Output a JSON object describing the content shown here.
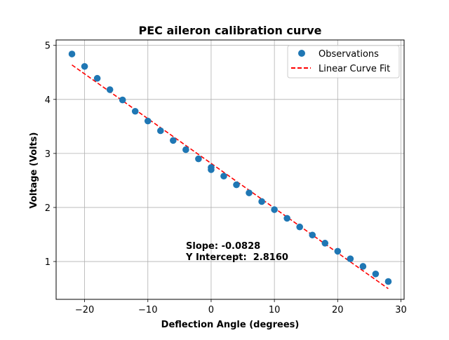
{
  "chart_data": {
    "type": "scatter",
    "title": "PEC aileron calibration curve",
    "xlabel": "Deflection Angle (degrees)",
    "ylabel": "Voltage (Volts)",
    "xlim": [
      -24.5,
      30.5
    ],
    "ylim": [
      0.3,
      5.1
    ],
    "xticks": [
      -20,
      -10,
      0,
      10,
      20,
      30
    ],
    "yticks": [
      1,
      2,
      3,
      4,
      5
    ],
    "grid": true,
    "legend_position": "top-right",
    "series": [
      {
        "name": "Observations",
        "kind": "scatter",
        "color": "#1f77b4",
        "x": [
          -22,
          -20,
          -18,
          -16,
          -14,
          -12,
          -10,
          -8,
          -6,
          -4,
          -2,
          0,
          0,
          2,
          4,
          6,
          8,
          10,
          12,
          14,
          16,
          18,
          20,
          22,
          24,
          26,
          28
        ],
        "y": [
          4.84,
          4.61,
          4.39,
          4.18,
          3.99,
          3.78,
          3.6,
          3.42,
          3.24,
          3.07,
          2.9,
          2.74,
          2.7,
          2.58,
          2.42,
          2.27,
          2.11,
          1.96,
          1.8,
          1.64,
          1.49,
          1.34,
          1.19,
          1.05,
          0.91,
          0.77,
          0.63
        ]
      },
      {
        "name": "Linear Curve Fit",
        "kind": "line",
        "style": "dashed",
        "color": "#ff0000",
        "x": [
          -22,
          28
        ],
        "y": [
          4.6376,
          0.4976
        ]
      }
    ],
    "annotations": {
      "slope": "Slope: -0.0828",
      "intercept": "Y Intercept:  2.8160"
    }
  }
}
